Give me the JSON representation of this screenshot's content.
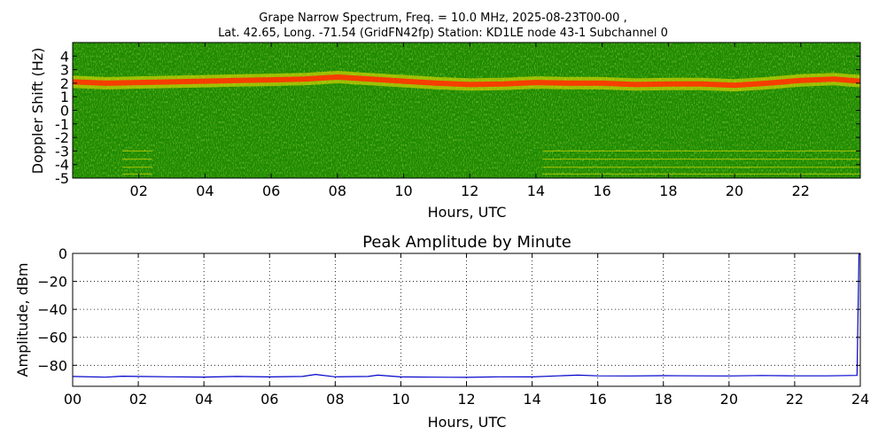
{
  "figure": {
    "title_line1": "Grape Narrow Spectrum, Freq. = 10.0 MHz, 2025-08-23T00-00 ,",
    "title_line2": "Lat.  42.65, Long. -71.54 (GridFN42fp) Station: KD1LE node 43-1 Subchannel 0"
  },
  "chart_data": [
    {
      "type": "heatmap",
      "title": "",
      "xlabel": "Hours, UTC",
      "ylabel": "Doppler Shift (Hz)",
      "xlim": [
        0,
        23.8
      ],
      "ylim": [
        -5,
        5
      ],
      "x_ticks": [
        2,
        4,
        6,
        8,
        10,
        12,
        14,
        16,
        18,
        20,
        22
      ],
      "x_tick_labels": [
        "02",
        "04",
        "06",
        "08",
        "10",
        "12",
        "14",
        "16",
        "18",
        "20",
        "22"
      ],
      "y_ticks": [
        4,
        3,
        2,
        1,
        0,
        -1,
        -2,
        -3,
        -4,
        -5
      ],
      "y_tick_labels": [
        "4",
        "3",
        "2",
        "1",
        "0",
        "-1",
        "-2",
        "-3",
        "-4",
        "-5"
      ],
      "grid": false,
      "colors": {
        "background": "#1e8a00",
        "mid": "#8cc000",
        "high": "#ffe600",
        "peak": "#ff3000"
      },
      "peak_trace": {
        "hours": [
          0,
          1,
          2,
          3,
          4,
          5,
          6,
          7,
          8,
          9,
          10,
          11,
          12,
          13,
          14,
          15,
          16,
          17,
          18,
          19,
          20,
          21,
          22,
          23,
          23.8
        ],
        "doppler_hz": [
          2.1,
          2.0,
          2.05,
          2.1,
          2.15,
          2.2,
          2.25,
          2.3,
          2.45,
          2.3,
          2.15,
          2.0,
          1.9,
          1.95,
          2.05,
          2.0,
          2.0,
          1.9,
          1.95,
          1.95,
          1.85,
          2.0,
          2.2,
          2.3,
          2.15
        ]
      },
      "interference_lines": {
        "segments_hours": [
          [
            1.5,
            2.4
          ],
          [
            14.2,
            23.8
          ]
        ],
        "doppler_hz": [
          -3.0,
          -3.6,
          -4.2,
          -4.7
        ]
      }
    },
    {
      "type": "line",
      "title": "Peak Amplitude by Minute",
      "xlabel": "Hours, UTC",
      "ylabel": "Amplitude, dBm",
      "xlim": [
        0,
        24
      ],
      "ylim": [
        -95,
        0
      ],
      "x_ticks": [
        0,
        2,
        4,
        6,
        8,
        10,
        12,
        14,
        16,
        18,
        20,
        22,
        24
      ],
      "x_tick_labels": [
        "00",
        "02",
        "04",
        "06",
        "08",
        "10",
        "12",
        "14",
        "16",
        "18",
        "20",
        "22",
        "24"
      ],
      "y_ticks": [
        0,
        -20,
        -40,
        -60,
        -80
      ],
      "y_tick_labels": [
        "0",
        "−20",
        "−40",
        "−60",
        "−80"
      ],
      "grid": true,
      "color": "#0000cc",
      "series": [
        {
          "x": [
            0,
            1,
            1.5,
            2,
            3,
            4,
            5,
            6,
            7,
            7.4,
            8,
            9,
            9.3,
            10,
            11,
            12,
            13,
            14,
            14.8,
            15.4,
            16,
            17,
            18,
            19,
            20,
            21,
            22,
            23,
            23.9,
            23.96,
            24
          ],
          "y": [
            -88,
            -88.5,
            -87.8,
            -88,
            -88.2,
            -88.4,
            -88,
            -88.3,
            -88,
            -86.5,
            -88.2,
            -88,
            -87,
            -88.3,
            -88.5,
            -88.6,
            -88.2,
            -88.3,
            -87.5,
            -87,
            -87.5,
            -87.6,
            -87.4,
            -87.5,
            -87.6,
            -87.3,
            -87.5,
            -87.5,
            -87.2,
            -0.5,
            -0.5
          ]
        }
      ]
    }
  ]
}
